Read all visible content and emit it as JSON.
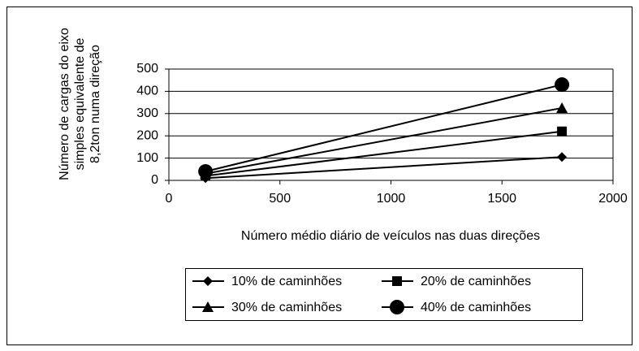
{
  "chart_data": {
    "type": "line",
    "ylabel": [
      "Número de cargas do eixo",
      "simples equivalente de",
      "8,2ton numa direção"
    ],
    "xlabel": "Número médio diário de veículos nas duas direções",
    "xlim": [
      0,
      2000
    ],
    "xticks": [
      0,
      500,
      1000,
      1500,
      2000
    ],
    "ylim": [
      0,
      500
    ],
    "yticks": [
      0,
      100,
      200,
      300,
      400,
      500
    ],
    "grid": true,
    "series": [
      {
        "name": "10% de caminhões",
        "color": "#000000",
        "marker": "diamond",
        "x": [
          165,
          1770
        ],
        "values": [
          10,
          105
        ]
      },
      {
        "name": "20% de caminhões",
        "color": "#000000",
        "marker": "square",
        "x": [
          165,
          1770
        ],
        "values": [
          20,
          220
        ]
      },
      {
        "name": "30% de caminhões",
        "color": "#000000",
        "marker": "triangle",
        "x": [
          165,
          1770
        ],
        "values": [
          30,
          325
        ]
      },
      {
        "name": "40% de caminhões",
        "color": "#000000",
        "marker": "circle",
        "x": [
          165,
          1770
        ],
        "values": [
          40,
          430
        ]
      }
    ]
  }
}
